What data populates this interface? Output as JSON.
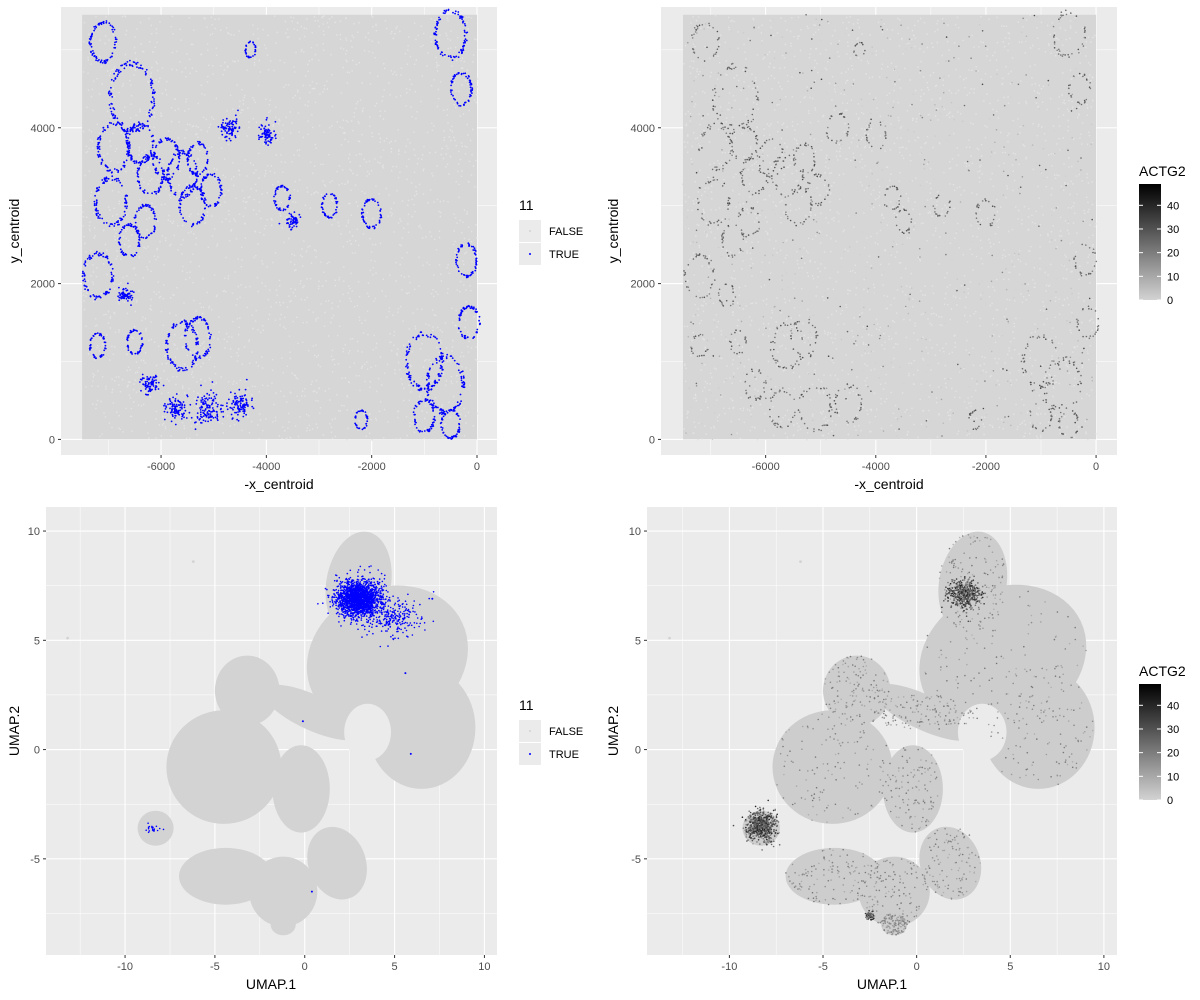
{
  "figure": {
    "background": "#ffffff",
    "panel_background": "#ebebeb",
    "grid_color": "#ffffff"
  },
  "chart_data": [
    {
      "id": "spatial_cluster",
      "type": "scatter",
      "xlabel": "-x_centroid",
      "ylabel": "y_centroid",
      "xlim": [
        -7900,
        380
      ],
      "ylim": [
        -200,
        5550
      ],
      "xticks": [
        -6000,
        -4000,
        -2000,
        0
      ],
      "yticks": [
        0,
        2000,
        4000
      ],
      "xtick_labels": [
        "-6000",
        "-4000",
        "-2000",
        "0"
      ],
      "ytick_labels": [
        "0",
        "2000",
        "4000"
      ],
      "grid": true,
      "legend": {
        "title": "11",
        "position": "right",
        "entries": [
          {
            "label": "FALSE",
            "color": "#d3d3d3"
          },
          {
            "label": "TRUE",
            "color": "#0000ff"
          }
        ]
      },
      "colors": {
        "FALSE": "#d3d3d3",
        "TRUE": "#0000ff"
      },
      "background_region": {
        "x": [
          -7500,
          0
        ],
        "y": [
          0,
          5450
        ]
      },
      "true_clusters": [
        {
          "type": "ring",
          "cx": -6550,
          "cy": 4400,
          "r": 420
        },
        {
          "type": "ring",
          "cx": -6900,
          "cy": 3750,
          "r": 300
        },
        {
          "type": "ring",
          "cx": -6400,
          "cy": 3800,
          "r": 250
        },
        {
          "type": "ring",
          "cx": -6200,
          "cy": 3400,
          "r": 250
        },
        {
          "type": "ring",
          "cx": -5900,
          "cy": 3600,
          "r": 250
        },
        {
          "type": "ring",
          "cx": -5600,
          "cy": 3400,
          "r": 280
        },
        {
          "type": "ring",
          "cx": -5400,
          "cy": 3000,
          "r": 250
        },
        {
          "type": "ring",
          "cx": -5300,
          "cy": 3600,
          "r": 200
        },
        {
          "type": "ring",
          "cx": -5050,
          "cy": 3200,
          "r": 200
        },
        {
          "type": "ring",
          "cx": -6950,
          "cy": 3050,
          "r": 300
        },
        {
          "type": "ring",
          "cx": -6300,
          "cy": 2800,
          "r": 200
        },
        {
          "type": "ring",
          "cx": -6600,
          "cy": 2550,
          "r": 200
        },
        {
          "type": "ring",
          "cx": -7200,
          "cy": 2100,
          "r": 280
        },
        {
          "type": "ring",
          "cx": -7200,
          "cy": 1200,
          "r": 150
        },
        {
          "type": "ring",
          "cx": -6500,
          "cy": 1250,
          "r": 150
        },
        {
          "type": "ring",
          "cx": -5600,
          "cy": 1200,
          "r": 300
        },
        {
          "type": "ring",
          "cx": -5300,
          "cy": 1300,
          "r": 250
        },
        {
          "type": "ring",
          "cx": -4300,
          "cy": 5000,
          "r": 100
        },
        {
          "type": "ring",
          "cx": -3700,
          "cy": 3100,
          "r": 150
        },
        {
          "type": "ring",
          "cx": -2800,
          "cy": 3000,
          "r": 150
        },
        {
          "type": "ring",
          "cx": -2000,
          "cy": 2900,
          "r": 180
        },
        {
          "type": "ring",
          "cx": -7100,
          "cy": 5100,
          "r": 250
        },
        {
          "type": "ring",
          "cx": -500,
          "cy": 5200,
          "r": 300
        },
        {
          "type": "ring",
          "cx": -300,
          "cy": 4500,
          "r": 200
        },
        {
          "type": "ring",
          "cx": -200,
          "cy": 2300,
          "r": 200
        },
        {
          "type": "ring",
          "cx": -150,
          "cy": 1500,
          "r": 200
        },
        {
          "type": "ring",
          "cx": -1000,
          "cy": 1000,
          "r": 350
        },
        {
          "type": "ring",
          "cx": -600,
          "cy": 700,
          "r": 350
        },
        {
          "type": "ring",
          "cx": -1000,
          "cy": 300,
          "r": 200
        },
        {
          "type": "ring",
          "cx": -500,
          "cy": 200,
          "r": 180
        },
        {
          "type": "ring",
          "cx": -2200,
          "cy": 250,
          "r": 120
        },
        {
          "type": "blob",
          "cx": -4700,
          "cy": 4000,
          "r": 200
        },
        {
          "type": "blob",
          "cx": -4000,
          "cy": 3900,
          "r": 180
        },
        {
          "type": "blob",
          "cx": -3500,
          "cy": 2800,
          "r": 150
        },
        {
          "type": "blob",
          "cx": -6200,
          "cy": 700,
          "r": 200
        },
        {
          "type": "blob",
          "cx": -5700,
          "cy": 400,
          "r": 250
        },
        {
          "type": "blob",
          "cx": -5100,
          "cy": 400,
          "r": 300
        },
        {
          "type": "blob",
          "cx": -4500,
          "cy": 450,
          "r": 250
        },
        {
          "type": "blob",
          "cx": -6700,
          "cy": 1850,
          "r": 150
        }
      ]
    },
    {
      "id": "spatial_expression",
      "type": "scatter",
      "xlabel": "-x_centroid",
      "ylabel": "y_centroid",
      "xlim": [
        -7900,
        380
      ],
      "ylim": [
        -200,
        5550
      ],
      "xticks": [
        -6000,
        -4000,
        -2000,
        0
      ],
      "yticks": [
        0,
        2000,
        4000
      ],
      "xtick_labels": [
        "-6000",
        "-4000",
        "-2000",
        "0"
      ],
      "ytick_labels": [
        "0",
        "2000",
        "4000"
      ],
      "grid": true,
      "colorbar": {
        "title": "ACTG2",
        "position": "right",
        "min": 0,
        "max": 49,
        "ticks": [
          0,
          10,
          20,
          30,
          40
        ],
        "tick_labels": [
          "0",
          "10",
          "20",
          "30",
          "40"
        ],
        "low_color": "#d3d3d3",
        "high_color": "#000000"
      },
      "background_region": {
        "x": [
          -7500,
          0
        ],
        "y": [
          0,
          5450
        ]
      }
    },
    {
      "id": "umap_cluster",
      "type": "scatter",
      "xlabel": "UMAP.1",
      "ylabel": "UMAP.2",
      "xlim": [
        -14.4,
        10.7
      ],
      "ylim": [
        -9.4,
        11.1
      ],
      "xticks": [
        -10,
        -5,
        0,
        5,
        10
      ],
      "yticks": [
        -5,
        0,
        5,
        10
      ],
      "xtick_labels": [
        "-10",
        "-5",
        "0",
        "5",
        "10"
      ],
      "ytick_labels": [
        "-5",
        "0",
        "5",
        "10"
      ],
      "grid": true,
      "legend": {
        "title": "11",
        "position": "right",
        "entries": [
          {
            "label": "FALSE",
            "color": "#d3d3d3"
          },
          {
            "label": "TRUE",
            "color": "#0000ff"
          }
        ]
      },
      "colors": {
        "FALSE": "#d3d3d3",
        "TRUE": "#0000ff"
      },
      "true_clusters": [
        {
          "cx": 3,
          "cy": 6.9,
          "sx": 1.1,
          "sy": 0.75,
          "n": 1900
        },
        {
          "cx": 4.8,
          "cy": 6,
          "sx": 1.6,
          "sy": 0.8,
          "n": 260
        },
        {
          "cx": -8.4,
          "cy": -3.7,
          "sx": 0.5,
          "sy": 0.25,
          "n": 20
        }
      ],
      "true_outliers": [
        [
          5.9,
          -0.2
        ],
        [
          0.4,
          -6.5
        ],
        [
          5.6,
          3.5
        ],
        [
          7.1,
          6.9
        ],
        [
          -0.1,
          1.3
        ]
      ]
    },
    {
      "id": "umap_expression",
      "type": "scatter",
      "xlabel": "UMAP.1",
      "ylabel": "UMAP.2",
      "xlim": [
        -14.4,
        10.7
      ],
      "ylim": [
        -9.4,
        11.1
      ],
      "xticks": [
        -10,
        -5,
        0,
        5,
        10
      ],
      "yticks": [
        -5,
        0,
        5,
        10
      ],
      "xtick_labels": [
        "-10",
        "-5",
        "0",
        "5",
        "10"
      ],
      "ytick_labels": [
        "-5",
        "0",
        "5",
        "10"
      ],
      "grid": true,
      "colorbar": {
        "title": "ACTG2",
        "position": "right",
        "min": 0,
        "max": 49,
        "ticks": [
          0,
          10,
          20,
          30,
          40
        ],
        "tick_labels": [
          "0",
          "10",
          "20",
          "30",
          "40"
        ],
        "low_color": "#d3d3d3",
        "high_color": "#000000"
      },
      "dark_regions": [
        {
          "cx": -8.3,
          "cy": -3.5,
          "sx": 0.7,
          "sy": 0.6,
          "n": 600
        },
        {
          "cx": 2.6,
          "cy": 7.1,
          "sx": 0.8,
          "sy": 0.6,
          "n": 450
        },
        {
          "cx": -2.5,
          "cy": -7.6,
          "sx": 0.2,
          "sy": 0.2,
          "n": 60
        }
      ]
    }
  ]
}
